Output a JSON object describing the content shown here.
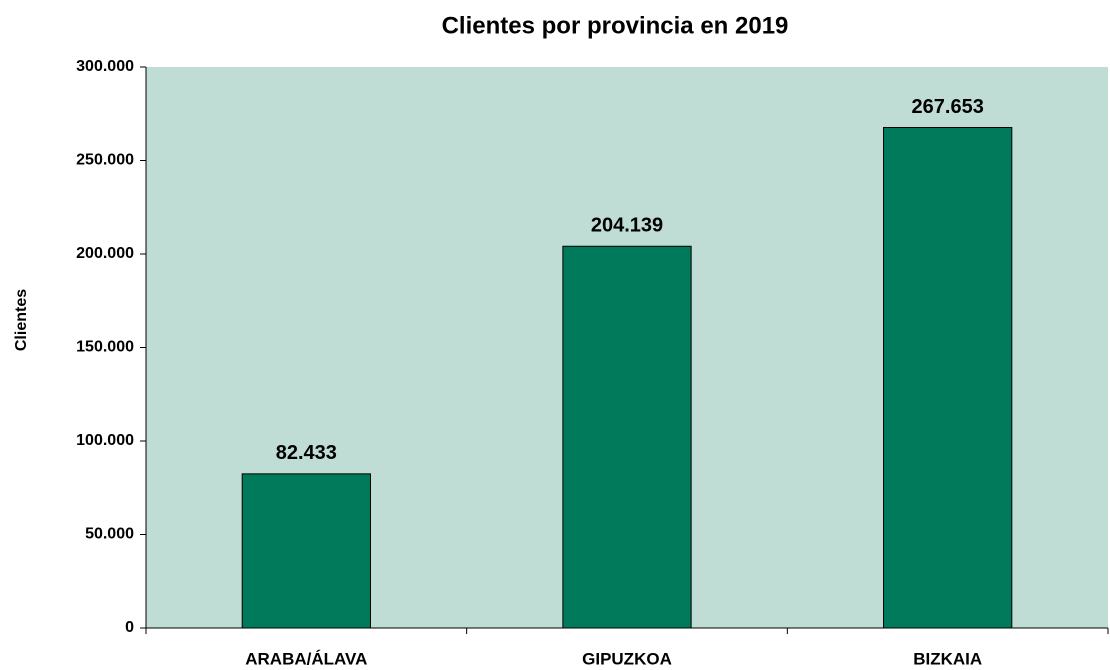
{
  "chart_data": {
    "type": "bar",
    "title": "Clientes por provincia en 2019",
    "y_label": "Clientes",
    "categories": [
      "ARABA/ÁLAVA",
      "GIPUZKOA",
      "BIZKAIA"
    ],
    "values": [
      82433,
      204139,
      267653
    ],
    "value_labels": [
      "82.433",
      "204.139",
      "267.653"
    ],
    "color": "#007a5a",
    "background": "#c0ddd5",
    "ylim": [
      0,
      300000
    ],
    "yticks": [
      0,
      {
        "value": 50000,
        "label": "50.000"
      },
      {
        "value": 100000,
        "label": "100.000"
      },
      {
        "value": 150000,
        "label": "150.000"
      },
      {
        "value": 200000,
        "label": "200.000"
      },
      {
        "value": 250000,
        "label": "250.000"
      },
      {
        "value": 300000,
        "label": "300.000"
      }
    ],
    "grid": false
  }
}
